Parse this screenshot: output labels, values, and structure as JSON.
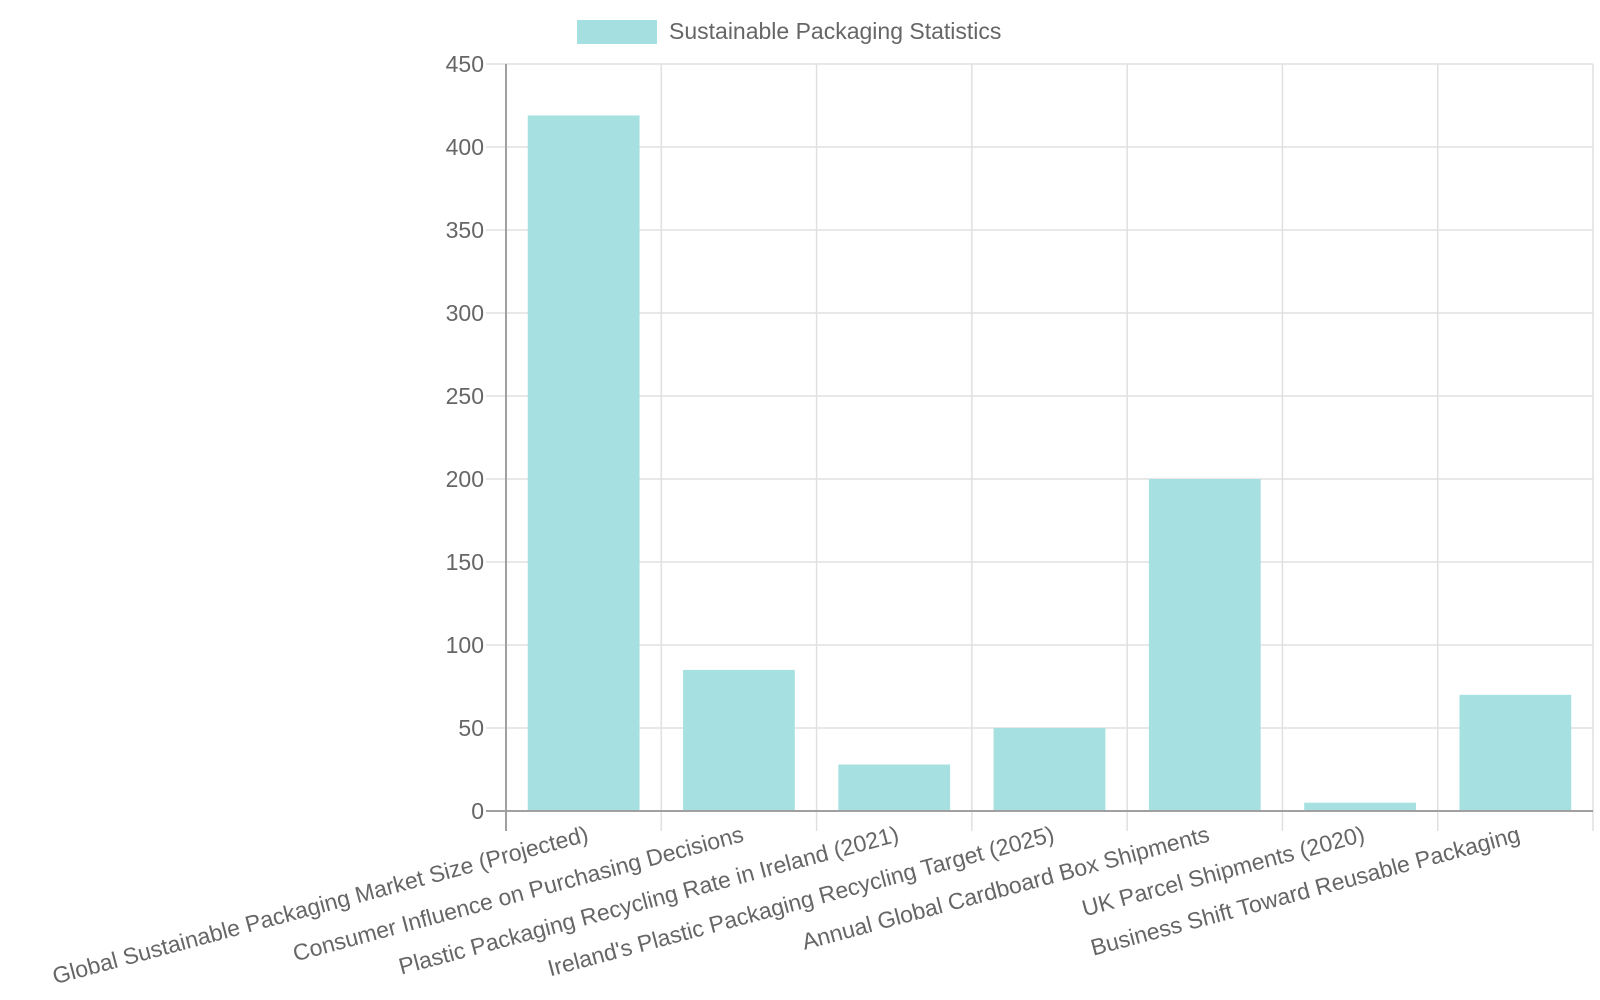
{
  "chart_data": {
    "type": "bar",
    "title": "",
    "legend": [
      {
        "label": "Sustainable Packaging Statistics",
        "color": "#a5dfdf"
      }
    ],
    "legend_position": "top",
    "xlabel": "",
    "ylabel": "",
    "ylim": [
      0,
      450
    ],
    "yticks": [
      0,
      50,
      100,
      150,
      200,
      250,
      300,
      350,
      400,
      450
    ],
    "grid": true,
    "categories": [
      "Global Sustainable Packaging Market Size (Projected)",
      "Consumer Influence on Purchasing Decisions",
      "Plastic Packaging Recycling Rate in Ireland (2021)",
      "Ireland's Plastic Packaging Recycling Target (2025)",
      "Annual Global Cardboard Box Shipments",
      "UK Parcel Shipments (2020)",
      "Business Shift Toward Reusable Packaging"
    ],
    "series": [
      {
        "name": "Sustainable Packaging Statistics",
        "values": [
          419,
          85,
          28,
          50,
          200,
          5,
          70
        ]
      }
    ]
  },
  "style": {
    "bar_fill": "#a5dfdf",
    "grid_color": "#e0e0e0",
    "axis_color": "#a0a0a0",
    "text_color": "#666666"
  }
}
